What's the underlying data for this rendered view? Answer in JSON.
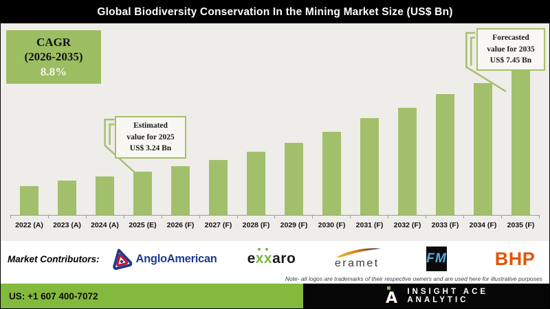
{
  "header": {
    "title": "Global Biodiversity Conservation In the Mining Market Size (US$ Bn)"
  },
  "cagr_box": {
    "label": "CAGR",
    "period": "(2026-2035)",
    "value": "8.8%"
  },
  "callouts": {
    "estimated": {
      "line1": "Estimated",
      "line2": "value for 2025",
      "line3": "US$ 3.24 Bn"
    },
    "forecast": {
      "line1": "Forecasted",
      "line2": "value for 2035",
      "line3": "US$ 7.45 Bn"
    }
  },
  "chart_data": {
    "type": "bar",
    "title": "Global Biodiversity Conservation In the Mining Market Size (US$ Bn)",
    "unit": "US$ Bn",
    "categories": [
      "2022 (A)",
      "2023 (A)",
      "2024 (A)",
      "2025 (E)",
      "2026 (F)",
      "2027 (F)",
      "2028 (F)",
      "2029 (F)",
      "2030 (F)",
      "2031 (F)",
      "2032 (F)",
      "2033 (F)",
      "2034 (F)",
      "2035 (F)"
    ],
    "values": [
      2.66,
      2.88,
      3.05,
      3.24,
      3.46,
      3.71,
      4.04,
      4.42,
      4.86,
      5.41,
      5.83,
      6.38,
      6.82,
      7.45
    ],
    "labeled_points": {
      "2025 (E)": 3.24,
      "2035 (F)": 7.45
    },
    "cagr": {
      "period": "2026-2035",
      "value_pct": 8.8
    },
    "ylim": [
      0,
      8
    ],
    "bar_color": "#a2c06c",
    "grid": false,
    "legend": false,
    "annotations": [
      {
        "target": "2025 (E)",
        "text": "Estimated value for 2025 US$ 3.24 Bn"
      },
      {
        "target": "2035 (F)",
        "text": "Forecasted value for 2035 US$ 7.45 Bn"
      }
    ]
  },
  "contributors": {
    "label": "Market Contributors:",
    "logos": [
      {
        "name": "AngloAmerican",
        "text": "AngloAmerican"
      },
      {
        "name": "exxaro",
        "parts": {
          "e": "e",
          "xx": "xx",
          "aro": "aro"
        }
      },
      {
        "name": "eramet",
        "text": "eramet"
      },
      {
        "name": "First Quantum Minerals",
        "text": "FM"
      },
      {
        "name": "BHP",
        "text": "BHP"
      }
    ],
    "note": "Note- all logos are trademarks of their respective owners and are used here for illustrative purposes"
  },
  "footer": {
    "phone": "US: +1 607 400-7072",
    "brand": "INSIGHT ACE ANALYTIC"
  },
  "colors": {
    "bar_green": "#a2c06c",
    "accent_green": "#9dbd62",
    "callout_border": "#a6bf6b",
    "footer_green": "#83b93c",
    "bhp_orange": "#e65300",
    "anglo_navy": "#1d3c8f",
    "fqm_blue": "#56aee0"
  }
}
